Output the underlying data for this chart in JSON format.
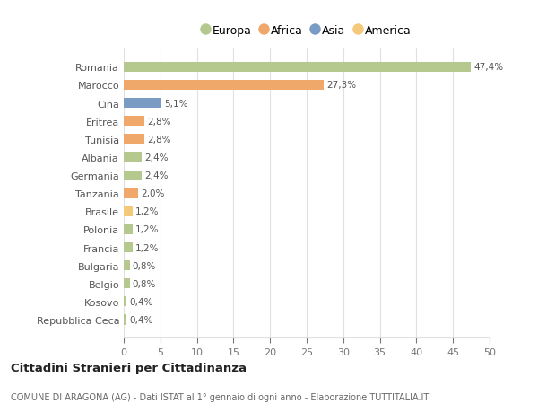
{
  "categories": [
    "Repubblica Ceca",
    "Kosovo",
    "Belgio",
    "Bulgaria",
    "Francia",
    "Polonia",
    "Brasile",
    "Tanzania",
    "Germania",
    "Albania",
    "Tunisia",
    "Eritrea",
    "Cina",
    "Marocco",
    "Romania"
  ],
  "values": [
    0.4,
    0.4,
    0.8,
    0.8,
    1.2,
    1.2,
    1.2,
    2.0,
    2.4,
    2.4,
    2.8,
    2.8,
    5.1,
    27.3,
    47.4
  ],
  "labels": [
    "0,4%",
    "0,4%",
    "0,8%",
    "0,8%",
    "1,2%",
    "1,2%",
    "1,2%",
    "2,0%",
    "2,4%",
    "2,4%",
    "2,8%",
    "2,8%",
    "5,1%",
    "27,3%",
    "47,4%"
  ],
  "colors": [
    "#b5c98e",
    "#b5c98e",
    "#b5c98e",
    "#b5c98e",
    "#b5c98e",
    "#b5c98e",
    "#f5c97a",
    "#f0a86a",
    "#b5c98e",
    "#b5c98e",
    "#f0a86a",
    "#f0a86a",
    "#7a9cc4",
    "#f0a86a",
    "#b5c98e"
  ],
  "legend_labels": [
    "Europa",
    "Africa",
    "Asia",
    "America"
  ],
  "legend_colors": [
    "#b5c98e",
    "#f0a86a",
    "#7a9cc4",
    "#f5c97a"
  ],
  "title": "Cittadini Stranieri per Cittadinanza",
  "subtitle": "COMUNE DI ARAGONA (AG) - Dati ISTAT al 1° gennaio di ogni anno - Elaborazione TUTTITALIA.IT",
  "xlim": [
    0,
    50
  ],
  "xticks": [
    0,
    5,
    10,
    15,
    20,
    25,
    30,
    35,
    40,
    45,
    50
  ],
  "background_color": "#ffffff",
  "grid_color": "#e0e0e0",
  "bar_height": 0.55
}
